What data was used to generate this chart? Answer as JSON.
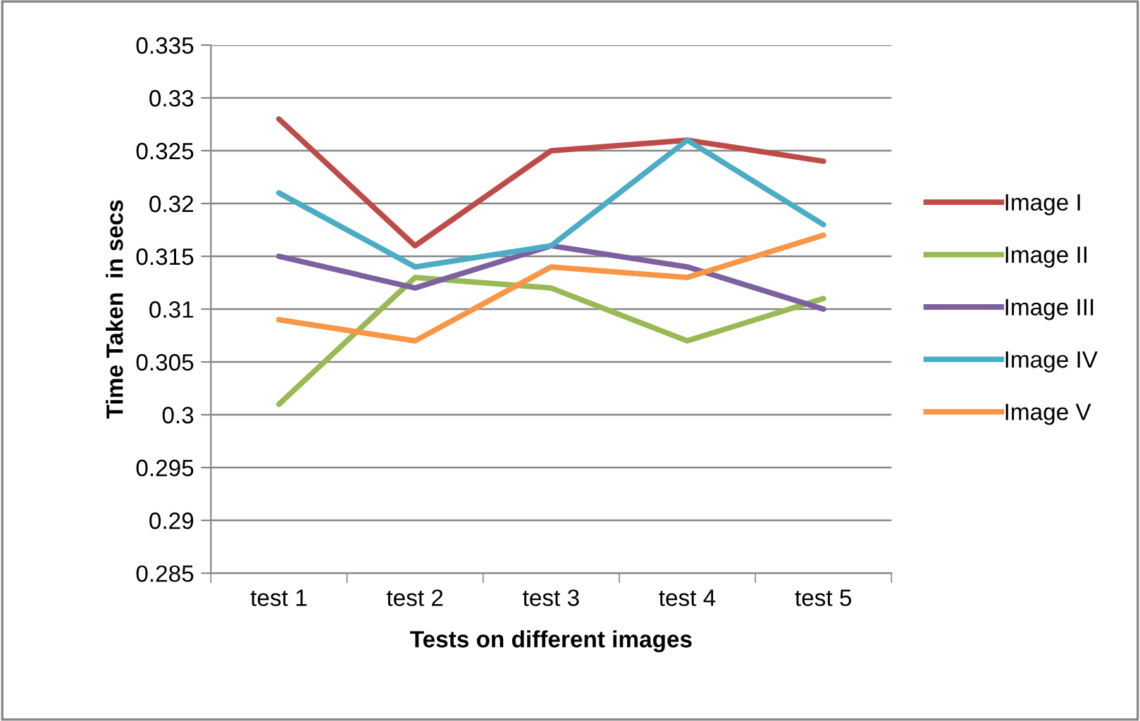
{
  "chart_data": {
    "type": "line",
    "xlabel": "Tests on different images",
    "ylabel": "Time Taken  in secs",
    "categories": [
      "test 1",
      "test 2",
      "test 3",
      "test 4",
      "test 5"
    ],
    "series": [
      {
        "name": "Image I",
        "color": "#be4b48",
        "values": [
          0.328,
          0.316,
          0.325,
          0.326,
          0.324
        ]
      },
      {
        "name": "Image II",
        "color": "#98b954",
        "values": [
          0.301,
          0.313,
          0.312,
          0.307,
          0.311
        ]
      },
      {
        "name": "Image III",
        "color": "#7d60a0",
        "values": [
          0.315,
          0.312,
          0.316,
          0.314,
          0.31
        ]
      },
      {
        "name": "Image IV",
        "color": "#4bacc6",
        "values": [
          0.321,
          0.314,
          0.316,
          0.326,
          0.318
        ]
      },
      {
        "name": "Image V",
        "color": "#f79646",
        "values": [
          0.309,
          0.307,
          0.314,
          0.313,
          0.317
        ]
      }
    ],
    "ylim": [
      0.285,
      0.335
    ],
    "yticks": [
      0.285,
      0.29,
      0.295,
      0.3,
      0.305,
      0.31,
      0.315,
      0.32,
      0.325,
      0.33,
      0.335
    ],
    "grid": "y",
    "legend": "right",
    "marker": "none",
    "line_style": "solid"
  }
}
